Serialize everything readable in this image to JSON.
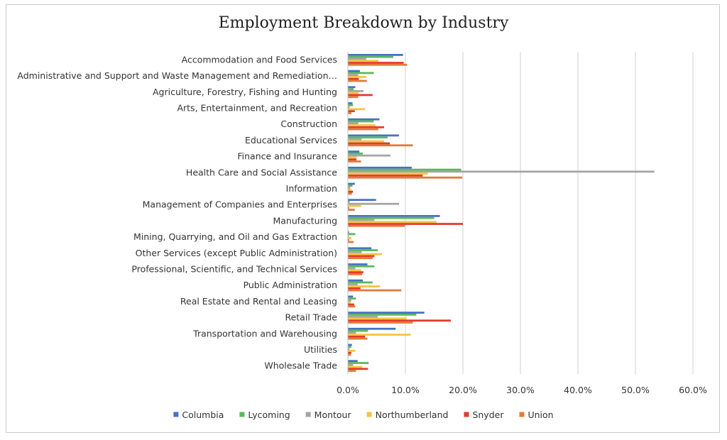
{
  "chart_data": {
    "type": "bar",
    "orientation": "horizontal",
    "title": "Employment Breakdown by Industry",
    "xlabel": "",
    "ylabel": "",
    "xlim": [
      0,
      60
    ],
    "x_ticks": [
      "0.0%",
      "10.0%",
      "20.0%",
      "30.0%",
      "40.0%",
      "50.0%",
      "60.0%"
    ],
    "grid": "vertical",
    "legend_position": "bottom",
    "categories": [
      "Accommodation and Food Services",
      "Administrative and Support and Waste Management and Remediation…",
      "Agriculture, Forestry, Fishing and Hunting",
      "Arts, Entertainment, and Recreation",
      "Construction",
      "Educational Services",
      "Finance and Insurance",
      "Health Care and Social Assistance",
      "Information",
      "Management of Companies and Enterprises",
      "Manufacturing",
      "Mining, Quarrying, and Oil and Gas Extraction",
      "Other Services (except Public Administration)",
      "Professional, Scientific, and Technical Services",
      "Public Administration",
      "Real Estate and Rental and Leasing",
      "Retail Trade",
      "Transportation and Warehousing",
      "Utilities",
      "Wholesale Trade"
    ],
    "series": [
      {
        "name": "Columbia",
        "color": "#4472c4",
        "values": [
          9.6,
          2.1,
          1.3,
          0.8,
          5.5,
          8.9,
          2.0,
          11.1,
          1.2,
          4.9,
          16.0,
          0.2,
          4.1,
          3.4,
          2.6,
          0.9,
          13.3,
          8.3,
          0.7,
          1.7
        ]
      },
      {
        "name": "Lycoming",
        "color": "#5cb85c",
        "values": [
          7.9,
          4.5,
          1.0,
          0.9,
          4.5,
          6.9,
          2.6,
          19.7,
          0.8,
          0.3,
          15.0,
          1.3,
          5.2,
          4.6,
          4.3,
          1.4,
          11.9,
          3.5,
          0.6,
          3.6
        ]
      },
      {
        "name": "Montour",
        "color": "#a5a5a5",
        "values": [
          3.2,
          1.8,
          2.7,
          0.3,
          1.8,
          2.4,
          7.4,
          53.3,
          0.4,
          8.9,
          4.6,
          0.2,
          2.4,
          1.3,
          1.7,
          0.6,
          5.2,
          1.4,
          0.3,
          0.9
        ]
      },
      {
        "name": "Northumberland",
        "color": "#f5c342",
        "values": [
          5.3,
          3.2,
          1.8,
          3.0,
          4.8,
          6.3,
          1.5,
          13.9,
          0.6,
          2.3,
          15.4,
          0.6,
          5.9,
          2.3,
          5.6,
          0.5,
          10.2,
          10.9,
          1.3,
          2.5
        ]
      },
      {
        "name": "Snyder",
        "color": "#e53a2c",
        "values": [
          9.7,
          1.9,
          4.3,
          1.2,
          6.3,
          7.3,
          1.5,
          13.0,
          0.9,
          0.2,
          20.0,
          0.2,
          4.6,
          2.7,
          2.2,
          1.1,
          17.9,
          3.0,
          0.6,
          3.5
        ]
      },
      {
        "name": "Union",
        "color": "#e07b39",
        "values": [
          10.3,
          3.3,
          1.8,
          0.6,
          5.3,
          11.3,
          2.3,
          19.9,
          0.7,
          1.2,
          9.9,
          1.0,
          4.3,
          2.5,
          9.3,
          1.3,
          11.3,
          3.4,
          0.5,
          1.4
        ]
      }
    ]
  }
}
